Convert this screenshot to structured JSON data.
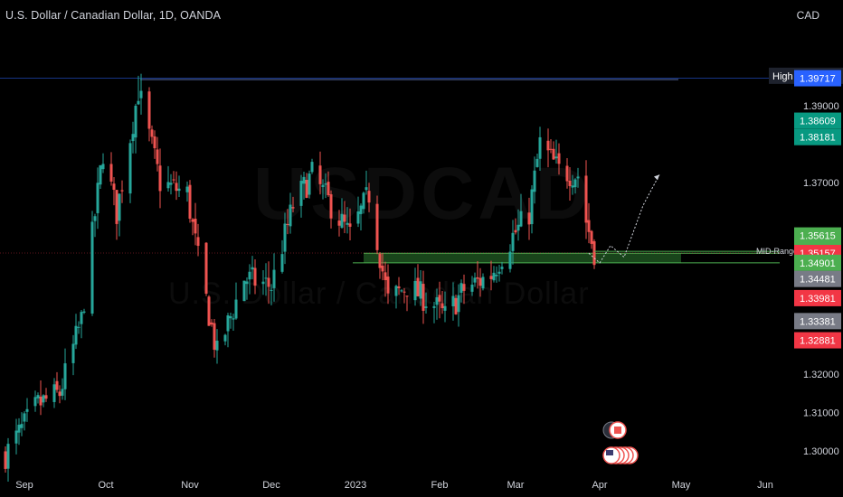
{
  "header": {
    "title": "U.S. Dollar / Canadian Dollar, 1D, OANDA",
    "currency": "CAD"
  },
  "watermark": {
    "symbol": "USDCAD",
    "name": "U.S. Dollar / Canadian Dollar"
  },
  "colors": {
    "up": "#26a69a",
    "down": "#ef5350",
    "axis_text": "#d1d4dc",
    "zone": "#2e7d32",
    "price_line": "#f23645",
    "high_line": "#2962ff"
  },
  "chart_data": {
    "type": "candlestick",
    "ylim": [
      1.295,
      1.4105
    ],
    "y_ticks": [
      1.3,
      1.31,
      1.32,
      1.37,
      1.39
    ],
    "x_ticks": [
      "Sep",
      "Oct",
      "Nov",
      "Dec",
      "2023",
      "Feb",
      "Mar",
      "Apr",
      "May",
      "Jun"
    ],
    "x_tick_dates": [
      "2022-09-01",
      "2022-10-01",
      "2022-11-01",
      "2022-12-01",
      "2023-01-01",
      "2023-02-01",
      "2023-03-01",
      "2023-04-01",
      "2023-05-01",
      "2023-06-01"
    ],
    "date_range": [
      "2022-08-23",
      "2023-06-01"
    ],
    "price_labels": [
      {
        "text": "High",
        "value": "1.39780",
        "price": 1.3978,
        "color": "#1e222d",
        "text_color": "#ffffff"
      },
      {
        "text": "",
        "value": "1.39717",
        "price": 1.39717,
        "color": "#2962ff",
        "text_color": "#ffffff"
      },
      {
        "text": "",
        "value": "1.38609",
        "price": 1.38609,
        "color": "#089981",
        "text_color": "#ffffff"
      },
      {
        "text": "",
        "value": "1.38181",
        "price": 1.38181,
        "color": "#089981",
        "text_color": "#ffffff"
      },
      {
        "text": "",
        "value": "1.35615",
        "price": 1.35615,
        "color": "#4caf50",
        "text_color": "#ffffff"
      },
      {
        "text": "",
        "value": "1.35200",
        "price": 1.352,
        "color": "#4caf50",
        "text_color": "#ffffff"
      },
      {
        "text": "",
        "value": "1.35157",
        "price": 1.35157,
        "color": "#f23645",
        "text_color": "#ffffff"
      },
      {
        "text": "",
        "value": "1.34901",
        "price": 1.34901,
        "color": "#4caf50",
        "text_color": "#ffffff"
      },
      {
        "text": "",
        "value": "1.34481",
        "price": 1.34481,
        "color": "#787b86",
        "text_color": "#ffffff"
      },
      {
        "text": "",
        "value": "1.33981",
        "price": 1.33981,
        "color": "#f23645",
        "text_color": "#ffffff"
      },
      {
        "text": "",
        "value": "1.33381",
        "price": 1.33381,
        "color": "#787b86",
        "text_color": "#ffffff"
      },
      {
        "text": "",
        "value": "1.32881",
        "price": 1.32881,
        "color": "#f23645",
        "text_color": "#ffffff"
      }
    ],
    "annotations": {
      "mid_range_label": "MID-Range",
      "mid_range_price": 1.352,
      "zone_top": 1.3515,
      "zone_bottom": 1.349,
      "zone_start": "2023-01-04",
      "zone_end": "2023-05-01",
      "high_price": 1.3978,
      "high_date": "2022-10-13",
      "projection": [
        [
          "2023-03-28",
          1.3515
        ],
        [
          "2023-04-01",
          1.349
        ],
        [
          "2023-04-05",
          1.3535
        ],
        [
          "2023-04-10",
          1.3505
        ],
        [
          "2023-04-17",
          1.364
        ],
        [
          "2023-04-23",
          1.372
        ]
      ]
    },
    "key_points": [
      {
        "date": "2022-08-25",
        "price": 1.299
      },
      {
        "date": "2022-09-06",
        "price": 1.312
      },
      {
        "date": "2022-09-14",
        "price": 1.315
      },
      {
        "date": "2022-09-22",
        "price": 1.334
      },
      {
        "date": "2022-09-30",
        "price": 1.378
      },
      {
        "date": "2022-10-05",
        "price": 1.362
      },
      {
        "date": "2022-10-13",
        "price": 1.394
      },
      {
        "date": "2022-10-21",
        "price": 1.37
      },
      {
        "date": "2022-10-31",
        "price": 1.367
      },
      {
        "date": "2022-11-04",
        "price": 1.35
      },
      {
        "date": "2022-11-11",
        "price": 1.325
      },
      {
        "date": "2022-11-21",
        "price": 1.345
      },
      {
        "date": "2022-12-01",
        "price": 1.343
      },
      {
        "date": "2022-12-09",
        "price": 1.364
      },
      {
        "date": "2022-12-16",
        "price": 1.372
      },
      {
        "date": "2022-12-30",
        "price": 1.356
      },
      {
        "date": "2023-01-06",
        "price": 1.367
      },
      {
        "date": "2023-01-13",
        "price": 1.339
      },
      {
        "date": "2023-01-20",
        "price": 1.343
      },
      {
        "date": "2023-01-30",
        "price": 1.338
      },
      {
        "date": "2023-02-03",
        "price": 1.335
      },
      {
        "date": "2023-02-10",
        "price": 1.342
      },
      {
        "date": "2023-02-20",
        "price": 1.346
      },
      {
        "date": "2023-02-28",
        "price": 1.356
      },
      {
        "date": "2023-03-06",
        "price": 1.362
      },
      {
        "date": "2023-03-10",
        "price": 1.38
      },
      {
        "date": "2023-03-17",
        "price": 1.373
      },
      {
        "date": "2023-03-24",
        "price": 1.372
      },
      {
        "date": "2023-03-27",
        "price": 1.36
      },
      {
        "date": "2023-03-30",
        "price": 1.352
      }
    ]
  }
}
